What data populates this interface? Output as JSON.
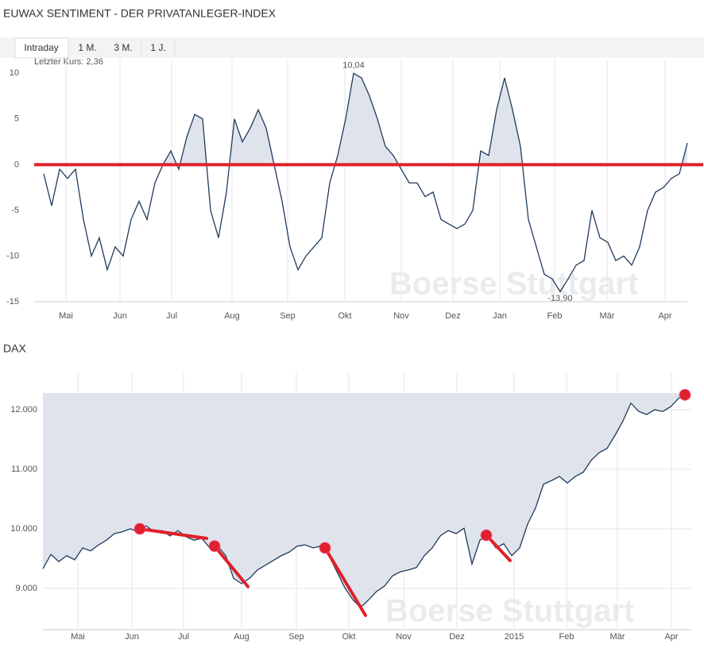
{
  "chart_data": [
    {
      "type": "line",
      "title": "EUWAX SENTIMENT - DER PRIVATANLEGER-INDEX",
      "tabs": [
        "Intraday",
        "1 M.",
        "3 M.",
        "1 J."
      ],
      "last_price": "Letzter Kurs: 2,36",
      "watermark": "Boerse Stuttgart",
      "color": "#1f3a5c",
      "fill_color": "#dfe4ec",
      "fill": "above_zero",
      "grid": "x",
      "values": [
        -1,
        -4.5,
        -0.5,
        -1.5,
        -0.5,
        -6,
        -10,
        -8,
        -11.5,
        -9,
        -10,
        -6,
        -4,
        -6,
        -2,
        0,
        1.5,
        -0.5,
        3,
        5.5,
        5,
        -5,
        -8,
        -3,
        5,
        2.5,
        4,
        6,
        4,
        0,
        -4,
        -9,
        -11.5,
        -10,
        -9,
        -8,
        -2,
        1,
        5,
        10,
        9.5,
        7.5,
        5,
        2,
        1,
        -0.5,
        -2,
        -2,
        -3.5,
        -3,
        -6,
        -6.5,
        -7,
        -6.5,
        -5,
        1.5,
        1,
        6,
        9.5,
        6,
        2,
        -6,
        -9,
        -12,
        -12.5,
        -13.9,
        -12.5,
        -11,
        -10.5,
        -5,
        -8,
        -8.5,
        -10.5,
        -10,
        -11,
        -9,
        -5,
        -3,
        -2.5,
        -1.5,
        -1,
        2.36
      ],
      "xlim": [
        -1.2,
        81
      ],
      "ylim": [
        -15,
        11.5
      ],
      "xticks": [
        {
          "value": 2.8,
          "label": "Mai"
        },
        {
          "value": 9.6,
          "label": "Jun"
        },
        {
          "value": 16.1,
          "label": "Jul"
        },
        {
          "value": 23.7,
          "label": "Aug"
        },
        {
          "value": 30.7,
          "label": "Sep"
        },
        {
          "value": 37.9,
          "label": "Okt"
        },
        {
          "value": 45,
          "label": "Nov"
        },
        {
          "value": 51.5,
          "label": "Dez"
        },
        {
          "value": 57.4,
          "label": "Jan"
        },
        {
          "value": 64.3,
          "label": "Feb"
        },
        {
          "value": 70.9,
          "label": "Mär"
        },
        {
          "value": 78.2,
          "label": "Apr"
        }
      ],
      "yticks": [
        10,
        5,
        0,
        -5,
        -10,
        -15
      ],
      "hline": {
        "value": 0,
        "color": "#e0202a"
      },
      "annotations": [
        {
          "text": "10,04",
          "x": 39,
          "y": 10.04
        },
        {
          "text": "-13,90",
          "x": 65,
          "y": -13.9
        }
      ]
    },
    {
      "type": "area",
      "title": "DAX",
      "watermark": "Boerse Stuttgart",
      "color": "#1f3a5c",
      "fill_color": "#dfe4ec",
      "fill": "to_top",
      "grid": "both",
      "values": [
        9330,
        9570,
        9450,
        9550,
        9480,
        9680,
        9630,
        9730,
        9810,
        9920,
        9950,
        10000,
        9950,
        10050,
        9950,
        9970,
        9880,
        9970,
        9870,
        9810,
        9840,
        9680,
        9710,
        9550,
        9170,
        9080,
        9170,
        9310,
        9390,
        9470,
        9550,
        9610,
        9710,
        9730,
        9680,
        9710,
        9550,
        9280,
        9010,
        8810,
        8680,
        8810,
        8950,
        9040,
        9210,
        9280,
        9310,
        9350,
        9550,
        9680,
        9880,
        9970,
        9920,
        10010,
        9410,
        9810,
        9880,
        9680,
        9750,
        9550,
        9680,
        10080,
        10350,
        10750,
        10810,
        10880,
        10770,
        10880,
        10950,
        11150,
        11280,
        11350,
        11570,
        11810,
        12110,
        11970,
        11920,
        12000,
        11970,
        12050,
        12190,
        12280
      ],
      "xlim": [
        0,
        81.6
      ],
      "ylim": [
        8307,
        12613
      ],
      "xticks": [
        {
          "value": 4.4,
          "label": "Mai"
        },
        {
          "value": 11.2,
          "label": "Jun"
        },
        {
          "value": 17.7,
          "label": "Jul"
        },
        {
          "value": 25,
          "label": "Aug"
        },
        {
          "value": 31.9,
          "label": "Sep"
        },
        {
          "value": 38.5,
          "label": "Okt"
        },
        {
          "value": 45.4,
          "label": "Nov"
        },
        {
          "value": 52.1,
          "label": "Dez"
        },
        {
          "value": 59.3,
          "label": "2015"
        },
        {
          "value": 65.9,
          "label": "Feb"
        },
        {
          "value": 72.3,
          "label": "Mär"
        },
        {
          "value": 79.1,
          "label": "Apr"
        }
      ],
      "yticks": [
        {
          "value": 9000,
          "label": "9.000"
        },
        {
          "value": 10000,
          "label": "10.000"
        },
        {
          "value": 11000,
          "label": "11.000"
        },
        {
          "value": 12000,
          "label": "12.000"
        }
      ],
      "drawing_color": "#e0202a",
      "trend_lines": [
        {
          "x": [
            12.2,
            20.6
          ],
          "y": [
            10000,
            9840
          ]
        },
        {
          "x": [
            21.6,
            25.8
          ],
          "y": [
            9710,
            9030
          ]
        },
        {
          "x": [
            35.5,
            40.6
          ],
          "y": [
            9680,
            8547
          ]
        },
        {
          "x": [
            55.8,
            58.8
          ],
          "y": [
            9893,
            9467
          ]
        }
      ],
      "markers": {
        "x": [
          12.2,
          21.6,
          35.5,
          55.8,
          80.8
        ],
        "y": [
          10000,
          9710,
          9680,
          9893,
          12250
        ]
      }
    }
  ]
}
